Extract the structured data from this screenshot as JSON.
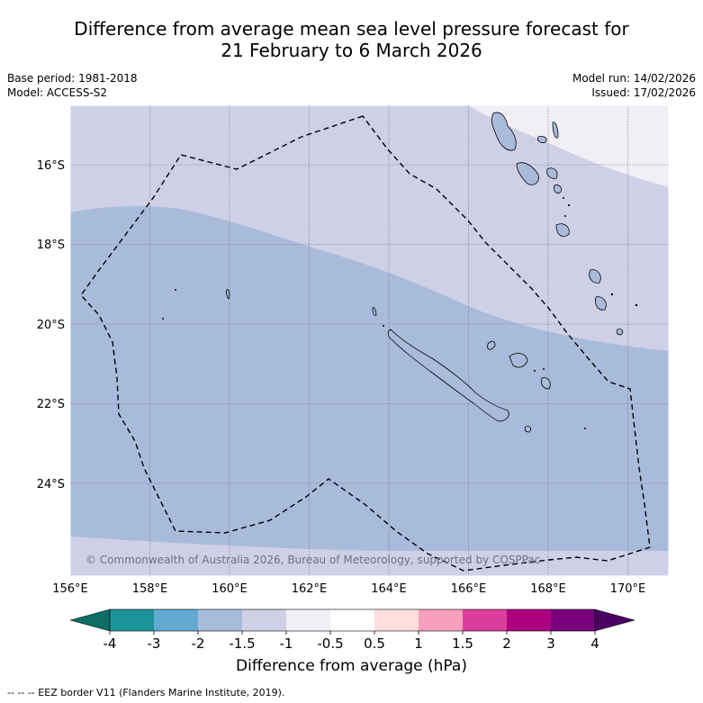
{
  "header": {
    "title_line1": "Difference from average mean sea level pressure forecast for",
    "title_line2": "21 February to 6 March 2026",
    "base_period": "Base period: 1981-2018",
    "model": "Model: ACCESS-S2",
    "model_run": "Model run: 14/02/2026",
    "issued": "Issued: 17/02/2026"
  },
  "map": {
    "lon_labels": [
      "156°E",
      "158°E",
      "160°E",
      "162°E",
      "164°E",
      "166°E",
      "168°E",
      "170°E"
    ],
    "lat_labels": [
      "16°S",
      "18°S",
      "20°S",
      "22°S",
      "24°S"
    ],
    "copyright": "© Commonwealth of Australia 2026, Bureau of Meteorology, supported by COSPPac",
    "anomaly_classes": [
      {
        "range": "-2 to -1.5",
        "color": "#a9bbdb"
      },
      {
        "range": "-1.5 to -1",
        "color": "#cfd0e6"
      },
      {
        "range": "-1 to -0.5",
        "color": "#f2eef5"
      }
    ]
  },
  "colorbar": {
    "ticks": [
      "-4",
      "-3",
      "-2",
      "-1.5",
      "-1",
      "-0.5",
      "0.5",
      "1",
      "1.5",
      "2",
      "3",
      "4"
    ],
    "colors": [
      "#0d6e64",
      "#1b9499",
      "#63aad2",
      "#a9bbdb",
      "#cfd0e6",
      "#f2eef5",
      "#ffffff",
      "#ffdede",
      "#f89fbb",
      "#db3d9c",
      "#ad0080",
      "#7a007c",
      "#4b0063"
    ],
    "label": "Difference from average (hPa)"
  },
  "footnote": "--  --  -- EEZ border V11 (Flanders Marine Institute, 2019)."
}
